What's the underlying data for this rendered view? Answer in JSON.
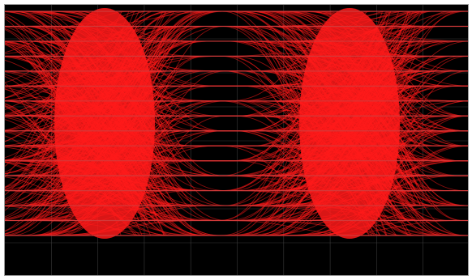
{
  "window": {
    "background_color": "#ffffff",
    "frame_color": "#9a9a9a"
  },
  "scope": {
    "screen_color": "#000000",
    "trace_color": "#ff1a1a",
    "rail_color": "#d23a3a",
    "grid_color": "#3a3a3a",
    "level_count": 16,
    "eye_count": 2,
    "grid": true
  }
}
